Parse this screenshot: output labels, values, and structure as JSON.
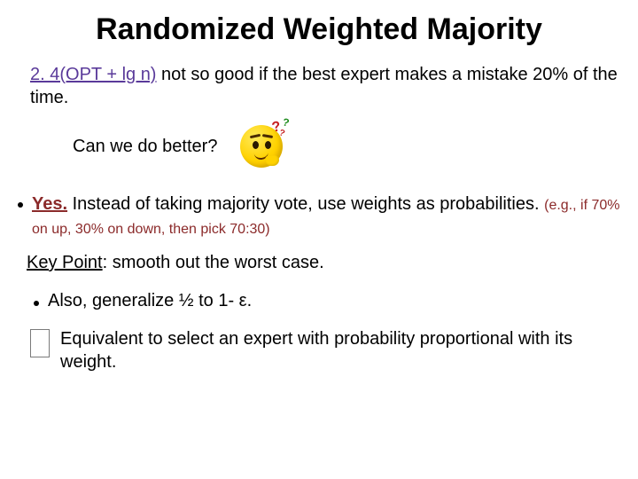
{
  "title": "Randomized Weighted Majority",
  "line1_a": "2. 4(OPT + lg n)",
  "line1_b": " not so good if the best expert makes a mistake 20% of the time.",
  "question": "Can we do better?",
  "bullet1_yes": "Yes.",
  "bullet1_rest": " Instead of taking majority vote, use weights as probabilities. ",
  "bullet1_small": "(e.g., if 70% on up, 30% on down, then pick 70:30)",
  "keypoint_label": "Key Point",
  "keypoint_rest": ": smooth out the worst case.",
  "bullet2": "Also, generalize ½ to 1- ε.",
  "equivalent": "Equivalent to select an expert with probability proportional with its weight.",
  "colors": {
    "purple": "#5a3a9a",
    "red": "#8b2a2a",
    "text": "#000000",
    "bg": "#ffffff"
  },
  "fontsize": {
    "title": 34,
    "body": 20,
    "small": 16
  }
}
